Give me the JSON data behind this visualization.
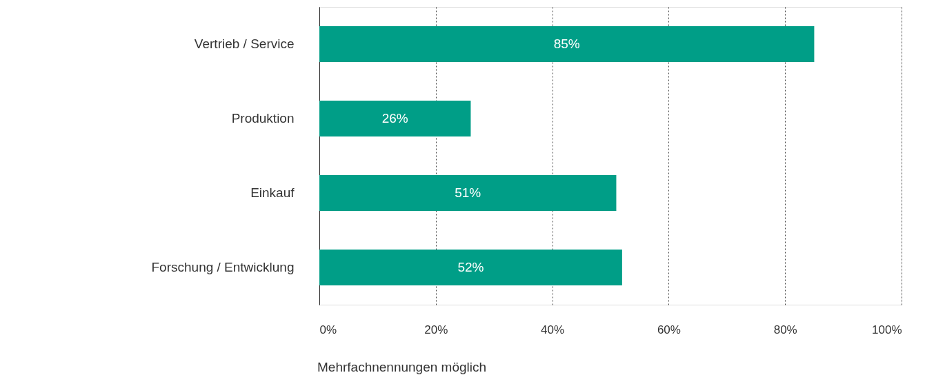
{
  "chart_data": {
    "type": "bar",
    "orientation": "horizontal",
    "categories": [
      "Vertrieb / Service",
      "Produktion",
      "Einkauf",
      "Forschung / Entwicklung"
    ],
    "values": [
      85,
      26,
      51,
      52
    ],
    "color": "#009e87",
    "value_labels": [
      "85%",
      "26%",
      "51%",
      "52%"
    ],
    "xlim": [
      0,
      100
    ],
    "xticks": [
      {
        "value": 0,
        "label": "0%"
      },
      {
        "value": 20,
        "label": "20%"
      },
      {
        "value": 40,
        "label": "40%"
      },
      {
        "value": 60,
        "label": "60%"
      },
      {
        "value": 80,
        "label": "80%"
      },
      {
        "value": 100,
        "label": "100%"
      }
    ],
    "grid": "x",
    "annotations": [
      "Mehrfachnennungen möglich"
    ]
  }
}
